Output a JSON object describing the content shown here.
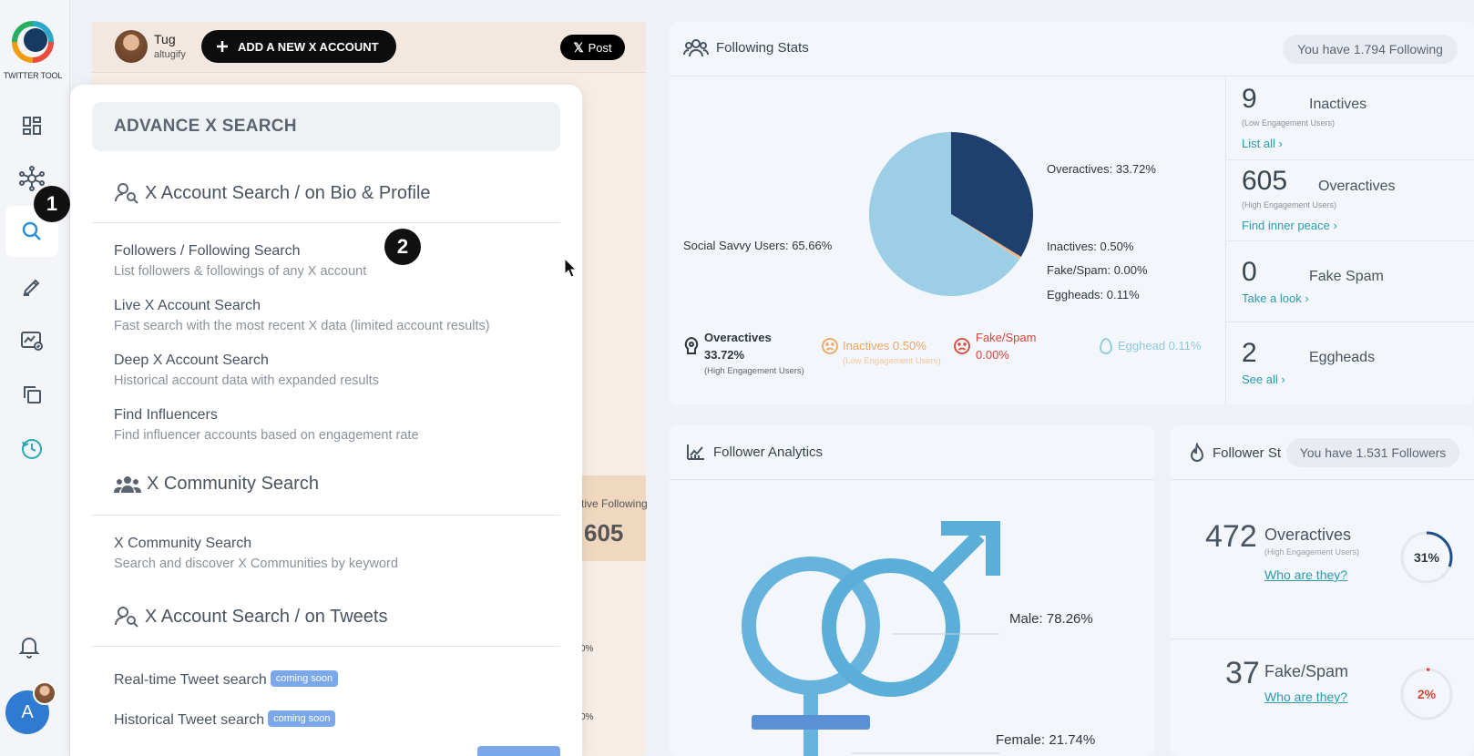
{
  "sidebar": {
    "logo_text": "TWITTER TOOL",
    "nav_icons": [
      "dashboard-icon",
      "network-icon",
      "search-icon",
      "edit-icon",
      "analytics-icon",
      "copy-icon",
      "refresh-clock-icon"
    ],
    "avatar_initial": "A"
  },
  "callouts": [
    "1",
    "2"
  ],
  "topbar": {
    "user_name": "Tug",
    "user_handle": "altugify",
    "add_account": "ADD A NEW X ACCOUNT",
    "post": "Post"
  },
  "background": {
    "active_following_label": "ctive Following",
    "active_following_value": "605",
    "frag1": "0%",
    "frag2": "0%"
  },
  "menu": {
    "title": "ADVANCE X SEARCH",
    "sections": [
      {
        "title": "X Account Search / on Bio & Profile"
      },
      {
        "title": "X Community Search"
      },
      {
        "title": "X Account Search / on Tweets"
      }
    ],
    "items": [
      {
        "title": "Followers / Following Search",
        "subtitle": "List followers & followings of any X account"
      },
      {
        "title": "Live X Account Search",
        "subtitle": "Fast search with the most recent X data (limited account results)"
      },
      {
        "title": "Deep X Account Search",
        "subtitle": "Historical account data with expanded results"
      },
      {
        "title": "Find Influencers",
        "subtitle": "Find influencer accounts based on engagement rate"
      },
      {
        "title": "X Community Search",
        "subtitle": "Search and discover X Communities by keyword"
      }
    ],
    "tweet_items": [
      {
        "title": "Real-time Tweet search",
        "badge": "coming soon"
      },
      {
        "title": "Historical Tweet search",
        "badge": "coming soon"
      }
    ]
  },
  "following_stats": {
    "title": "Following Stats",
    "pill": "You have 1.794 Following",
    "pie_labels": {
      "overactives": "Overactives: 33.72%",
      "social": "Social Savvy Users: 65.66%",
      "inactives": "Inactives: 0.50%",
      "fake": "Fake/Spam: 0.00%",
      "eggheads": "Eggheads: 0.11%"
    },
    "legend": {
      "over_a": "Overactives",
      "over_b": "33.72%",
      "over_sub": "(High Engagement Users)",
      "inact": "Inactives 0.50%",
      "inact_sub": "(Low Engagement Users)",
      "fake_a": "Fake/Spam",
      "fake_b": "0.00%",
      "egg": "Egghead 0.11%"
    },
    "stats": [
      {
        "num": "9",
        "name": "Inactives",
        "sub": "(Low Engagement Users)",
        "link": "List all ›"
      },
      {
        "num": "605",
        "name": "Overactives",
        "sub": "(High Engagement Users)",
        "link": "Find inner peace ›"
      },
      {
        "num": "0",
        "name": "Fake Spam",
        "sub": "",
        "link": "Take a look ›"
      },
      {
        "num": "2",
        "name": "Eggheads",
        "sub": "",
        "link": "See all ›"
      }
    ]
  },
  "follower_analytics": {
    "title": "Follower Analytics",
    "male": "Male: 78.26%",
    "female": "Female: 21.74%"
  },
  "follower_stats": {
    "title": "Follower St",
    "pill": "You have 1.531 Followers",
    "rows": [
      {
        "num": "472",
        "name": "Overactives",
        "sub": "(High Engagement Users)",
        "link": "Who are they?",
        "ring": "31%"
      },
      {
        "num": "37",
        "name": "Fake/Spam",
        "sub": "",
        "link": "Who are they?",
        "ring": "2%"
      }
    ]
  },
  "chart_data": {
    "type": "pie",
    "title": "",
    "categories": [
      "Overactives",
      "Inactives",
      "Fake/Spam",
      "Eggheads",
      "Social Savvy Users"
    ],
    "values": [
      33.72,
      0.5,
      0.0,
      0.11,
      65.66
    ],
    "colors": [
      "#1f3f6e",
      "#f0b27a",
      "#e05a4e",
      "#b9d7e8",
      "#9ccfe6"
    ]
  },
  "colors": {
    "accent": "#2a9bb3",
    "dark_blue": "#1f3f6e",
    "light_blue": "#9ccfe6",
    "inactive_orange": "#f0a460",
    "fake_red": "#d9453a",
    "egghead_teal": "#8fc9dc"
  }
}
